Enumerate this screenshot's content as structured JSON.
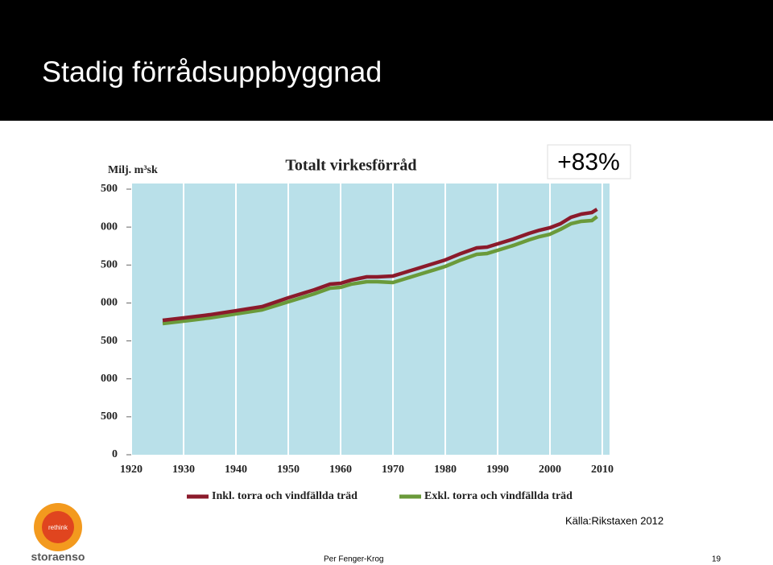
{
  "slide": {
    "title": "Stadig förrådsuppbyggnad",
    "annotation": "+83%",
    "source": "Källa:Rikstaxen 2012",
    "footer": "Per Fenger-Krog",
    "page": "19",
    "logo_text": "storaenso",
    "logo_tagline": "rethink"
  },
  "chart_data": {
    "type": "line",
    "title": "Totalt virkesförråd",
    "y_label": "Milj. m³sk",
    "x": [
      1926,
      1930,
      1935,
      1940,
      1945,
      1950,
      1955,
      1958,
      1960,
      1962,
      1965,
      1967,
      1970,
      1972,
      1975,
      1978,
      1980,
      1983,
      1986,
      1988,
      1990,
      1993,
      1996,
      1998,
      2000,
      2002,
      2004,
      2006,
      2008,
      2009
    ],
    "series": [
      {
        "name": "Inkl. torra och vindfällda träd",
        "color": "#8b1a2b",
        "values": [
          1771,
          1803,
          1845,
          1898,
          1952,
          2068,
          2174,
          2248,
          2259,
          2301,
          2344,
          2344,
          2355,
          2397,
          2461,
          2524,
          2567,
          2652,
          2726,
          2736,
          2779,
          2842,
          2917,
          2959,
          2991,
          3044,
          3129,
          3171,
          3192,
          3235
        ]
      },
      {
        "name": "Exkl. torra och vindfällda träd",
        "color": "#6a9a3a",
        "values": [
          1729,
          1761,
          1803,
          1856,
          1909,
          2015,
          2121,
          2195,
          2206,
          2248,
          2280,
          2280,
          2270,
          2312,
          2376,
          2439,
          2482,
          2567,
          2641,
          2652,
          2694,
          2758,
          2832,
          2874,
          2906,
          2970,
          3044,
          3076,
          3086,
          3139
        ]
      }
    ],
    "xlim": [
      1920,
      2010
    ],
    "xticks": [
      1920,
      1930,
      1940,
      1950,
      1960,
      1970,
      1980,
      1990,
      2000,
      2010
    ],
    "ylim": [
      0,
      3500
    ],
    "yticks": [
      0,
      {
        "value": 500,
        "label": "500"
      },
      {
        "value": 1000,
        "label": "000"
      },
      {
        "value": 1500,
        "label": "500"
      },
      {
        "value": 2000,
        "label": "000"
      },
      {
        "value": 2500,
        "label": "500"
      },
      {
        "value": 3000,
        "label": "000"
      },
      {
        "value": 3500,
        "label": "500"
      }
    ],
    "grid": "x",
    "background": "#b9e0e9"
  }
}
